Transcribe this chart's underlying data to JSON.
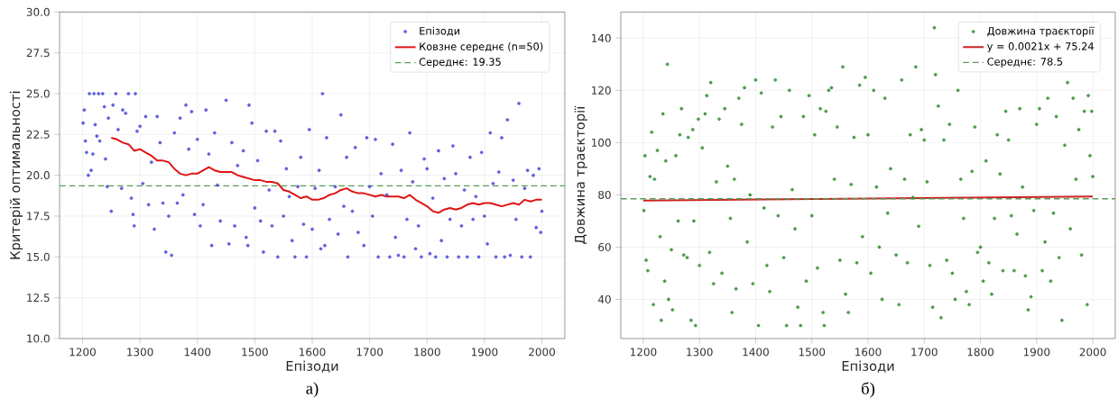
{
  "chart_data": [
    {
      "type": "scatter",
      "xlabel": "Епізоди",
      "ylabel": "Критерій оптимальності",
      "xlim": [
        1160,
        2040
      ],
      "ylim": [
        10,
        30
      ],
      "xticks": [
        1200,
        1300,
        1400,
        1500,
        1600,
        1700,
        1800,
        1900,
        2000
      ],
      "yticks": [
        {
          "value": 10,
          "label": "10.0"
        },
        {
          "value": 12.5,
          "label": "12.5"
        },
        {
          "value": 15,
          "label": "15.0"
        },
        {
          "value": 17.5,
          "label": "17.5"
        },
        {
          "value": 20,
          "label": "20.0"
        },
        {
          "value": 22.5,
          "label": "22.5"
        },
        {
          "value": 25,
          "label": "25.0"
        },
        {
          "value": 27.5,
          "label": "27.5"
        },
        {
          "value": 30,
          "label": "30.0"
        }
      ],
      "grid": true,
      "legend": "top right",
      "series": [
        {
          "name": "Епізоди",
          "marker": "circle",
          "color": "#4646d8",
          "x": [
            1201,
            1203,
            1205,
            1207,
            1210,
            1212,
            1215,
            1218,
            1220,
            1222,
            1225,
            1228,
            1230,
            1235,
            1238,
            1240,
            1243,
            1245,
            1250,
            1253,
            1258,
            1262,
            1268,
            1270,
            1275,
            1280,
            1285,
            1288,
            1290,
            1292,
            1295,
            1300,
            1305,
            1310,
            1315,
            1320,
            1325,
            1330,
            1335,
            1340,
            1345,
            1350,
            1355,
            1360,
            1365,
            1370,
            1375,
            1380,
            1385,
            1390,
            1395,
            1400,
            1405,
            1410,
            1415,
            1420,
            1425,
            1430,
            1435,
            1440,
            1450,
            1455,
            1460,
            1465,
            1470,
            1480,
            1485,
            1488,
            1490,
            1495,
            1500,
            1505,
            1510,
            1515,
            1520,
            1525,
            1530,
            1535,
            1540,
            1545,
            1550,
            1555,
            1560,
            1565,
            1570,
            1575,
            1580,
            1585,
            1590,
            1595,
            1600,
            1605,
            1612,
            1615,
            1618,
            1622,
            1625,
            1630,
            1640,
            1645,
            1650,
            1655,
            1660,
            1662,
            1670,
            1675,
            1680,
            1690,
            1695,
            1700,
            1705,
            1710,
            1715,
            1720,
            1730,
            1735,
            1740,
            1745,
            1750,
            1755,
            1760,
            1765,
            1770,
            1775,
            1780,
            1785,
            1790,
            1795,
            1800,
            1805,
            1810,
            1815,
            1820,
            1825,
            1830,
            1835,
            1840,
            1845,
            1850,
            1855,
            1860,
            1865,
            1870,
            1875,
            1880,
            1885,
            1890,
            1895,
            1900,
            1905,
            1910,
            1915,
            1920,
            1925,
            1930,
            1935,
            1940,
            1945,
            1950,
            1955,
            1960,
            1965,
            1970,
            1975,
            1980,
            1985,
            1990,
            1995,
            1998,
            2000
          ],
          "values": [
            23.2,
            24.0,
            22.1,
            21.4,
            20.0,
            25.0,
            20.3,
            21.3,
            25.0,
            23.1,
            22.4,
            25.0,
            22.1,
            25.0,
            24.2,
            21.0,
            19.3,
            23.5,
            17.8,
            24.3,
            25.0,
            22.8,
            19.2,
            24.0,
            23.8,
            25.0,
            18.6,
            17.6,
            16.9,
            25.0,
            22.7,
            23.0,
            19.5,
            23.6,
            18.2,
            20.8,
            16.7,
            23.6,
            22.0,
            18.3,
            15.3,
            17.5,
            15.1,
            22.6,
            18.3,
            23.5,
            18.8,
            24.3,
            21.6,
            23.9,
            17.6,
            22.2,
            16.9,
            18.2,
            24.0,
            21.3,
            15.7,
            22.6,
            19.4,
            17.2,
            24.6,
            15.8,
            22.0,
            16.9,
            20.6,
            21.5,
            16.2,
            15.7,
            24.3,
            23.2,
            18.0,
            20.9,
            17.2,
            15.3,
            22.7,
            19.1,
            16.9,
            22.7,
            15.0,
            22.1,
            17.5,
            20.4,
            18.7,
            16.0,
            15.0,
            19.3,
            21.1,
            17.0,
            15.0,
            22.8,
            16.7,
            19.2,
            20.3,
            15.5,
            25.0,
            15.7,
            22.3,
            17.3,
            19.3,
            16.4,
            23.7,
            18.1,
            21.1,
            15.0,
            17.8,
            21.7,
            16.5,
            15.7,
            22.3,
            19.3,
            17.5,
            22.2,
            15.0,
            20.1,
            18.8,
            15.0,
            21.9,
            16.2,
            15.1,
            20.3,
            15.0,
            17.3,
            22.6,
            19.6,
            15.5,
            16.9,
            15.0,
            21.0,
            20.4,
            15.2,
            18.6,
            15.0,
            21.5,
            16.0,
            19.8,
            15.0,
            17.3,
            21.8,
            20.1,
            15.0,
            16.9,
            19.1,
            15.0,
            21.1,
            17.3,
            18.7,
            15.0,
            21.4,
            17.5,
            15.8,
            22.6,
            19.5,
            15.0,
            20.2,
            22.3,
            15.0,
            23.4,
            15.1,
            19.7,
            17.3,
            24.4,
            15.0,
            19.2,
            20.3,
            15.0,
            20.0,
            16.8,
            20.4,
            16.5,
            17.8
          ]
        },
        {
          "name": "Ковзне середнє (n=50)",
          "type": "line",
          "marker": "none",
          "line_style": "solid",
          "color": "#e01414",
          "x": [
            1250,
            1260,
            1270,
            1280,
            1290,
            1300,
            1310,
            1320,
            1330,
            1340,
            1350,
            1360,
            1370,
            1380,
            1390,
            1400,
            1410,
            1420,
            1430,
            1440,
            1450,
            1460,
            1470,
            1480,
            1490,
            1500,
            1510,
            1520,
            1530,
            1540,
            1550,
            1560,
            1570,
            1580,
            1590,
            1600,
            1610,
            1620,
            1630,
            1640,
            1650,
            1660,
            1670,
            1680,
            1690,
            1700,
            1710,
            1720,
            1730,
            1740,
            1750,
            1760,
            1770,
            1780,
            1790,
            1800,
            1810,
            1820,
            1830,
            1840,
            1850,
            1860,
            1870,
            1880,
            1890,
            1900,
            1910,
            1920,
            1930,
            1940,
            1950,
            1960,
            1970,
            1980,
            1990,
            2000
          ],
          "values": [
            22.3,
            22.2,
            22.0,
            21.9,
            21.5,
            21.6,
            21.4,
            21.2,
            20.9,
            20.9,
            20.8,
            20.4,
            20.1,
            20.0,
            20.1,
            20.1,
            20.3,
            20.5,
            20.3,
            20.2,
            20.2,
            20.2,
            20.0,
            19.9,
            19.8,
            19.7,
            19.7,
            19.6,
            19.6,
            19.5,
            19.1,
            19.0,
            18.8,
            18.6,
            18.7,
            18.5,
            18.5,
            18.6,
            18.8,
            18.9,
            19.1,
            19.2,
            19.0,
            18.9,
            18.9,
            18.8,
            18.7,
            18.8,
            18.7,
            18.7,
            18.7,
            18.6,
            18.8,
            18.5,
            18.3,
            18.1,
            17.8,
            17.7,
            17.9,
            18.0,
            17.9,
            18.0,
            18.2,
            18.3,
            18.2,
            18.3,
            18.3,
            18.2,
            18.1,
            18.2,
            18.3,
            18.2,
            18.5,
            18.4,
            18.5,
            18.5
          ]
        }
      ],
      "ref_lines": [
        {
          "axis": "y",
          "value": 19.35,
          "label": "Середнє: 19.35",
          "color": "#5a9a5a",
          "line_style": "dashed"
        }
      ],
      "annotations": [
        "а)"
      ]
    },
    {
      "type": "scatter",
      "xlabel": "Епізоди",
      "ylabel": "Довжина траєкторії",
      "xlim": [
        1160,
        2040
      ],
      "ylim": [
        25,
        150
      ],
      "xticks": [
        1200,
        1300,
        1400,
        1500,
        1600,
        1700,
        1800,
        1900,
        2000
      ],
      "yticks": [
        40,
        60,
        80,
        100,
        120,
        140
      ],
      "grid": true,
      "legend": "top right",
      "series": [
        {
          "name": "Довжина траєкторії",
          "marker": "circle",
          "color": "#2e8b2e",
          "x": [
            1201,
            1203,
            1205,
            1208,
            1212,
            1215,
            1218,
            1220,
            1225,
            1230,
            1232,
            1235,
            1238,
            1240,
            1243,
            1245,
            1250,
            1252,
            1258,
            1262,
            1265,
            1268,
            1272,
            1278,
            1280,
            1285,
            1288,
            1290,
            1293,
            1298,
            1300,
            1305,
            1310,
            1313,
            1318,
            1320,
            1325,
            1330,
            1335,
            1340,
            1345,
            1350,
            1355,
            1358,
            1362,
            1365,
            1370,
            1375,
            1380,
            1385,
            1390,
            1395,
            1400,
            1405,
            1410,
            1415,
            1420,
            1425,
            1430,
            1435,
            1440,
            1445,
            1450,
            1455,
            1460,
            1465,
            1470,
            1475,
            1480,
            1485,
            1490,
            1495,
            1500,
            1505,
            1510,
            1515,
            1520,
            1522,
            1525,
            1530,
            1535,
            1540,
            1545,
            1550,
            1555,
            1560,
            1565,
            1570,
            1575,
            1580,
            1585,
            1590,
            1595,
            1600,
            1605,
            1610,
            1615,
            1620,
            1625,
            1630,
            1635,
            1640,
            1650,
            1655,
            1660,
            1665,
            1670,
            1675,
            1680,
            1685,
            1690,
            1695,
            1700,
            1705,
            1710,
            1715,
            1718,
            1720,
            1725,
            1730,
            1735,
            1740,
            1745,
            1750,
            1755,
            1760,
            1765,
            1770,
            1775,
            1780,
            1785,
            1790,
            1795,
            1800,
            1805,
            1810,
            1815,
            1820,
            1825,
            1830,
            1835,
            1840,
            1845,
            1850,
            1855,
            1860,
            1865,
            1870,
            1875,
            1880,
            1885,
            1890,
            1895,
            1900,
            1905,
            1910,
            1915,
            1920,
            1925,
            1930,
            1935,
            1940,
            1945,
            1950,
            1955,
            1960,
            1965,
            1970,
            1975,
            1980,
            1985,
            1990,
            1992,
            1995,
            1998,
            2000
          ],
          "values": [
            74,
            95,
            55,
            51,
            87,
            104,
            38,
            86,
            97,
            64,
            32,
            111,
            47,
            93,
            130,
            40,
            59,
            36,
            95,
            70,
            103,
            113,
            57,
            56,
            102,
            32,
            105,
            70,
            30,
            109,
            53,
            98,
            111,
            118,
            58,
            123,
            46,
            85,
            109,
            50,
            113,
            91,
            71,
            35,
            86,
            44,
            117,
            107,
            121,
            62,
            80,
            46,
            124,
            30,
            119,
            75,
            53,
            43,
            106,
            124,
            72,
            110,
            56,
            30,
            120,
            82,
            67,
            37,
            30,
            110,
            47,
            118,
            72,
            103,
            52,
            113,
            35,
            30,
            112,
            120,
            121,
            86,
            106,
            55,
            129,
            42,
            35,
            84,
            102,
            54,
            122,
            64,
            125,
            103,
            50,
            120,
            83,
            60,
            40,
            117,
            73,
            90,
            57,
            38,
            124,
            86,
            54,
            103,
            79,
            129,
            68,
            105,
            101,
            85,
            53,
            37,
            144,
            126,
            114,
            33,
            101,
            55,
            107,
            50,
            40,
            120,
            86,
            71,
            43,
            38,
            89,
            106,
            58,
            60,
            47,
            93,
            54,
            42,
            71,
            103,
            88,
            51,
            112,
            101,
            72,
            51,
            65,
            113,
            83,
            49,
            36,
            41,
            74,
            107,
            113,
            51,
            62,
            117,
            47,
            73,
            110,
            56,
            32,
            99,
            123,
            67,
            117,
            86,
            105,
            57,
            112,
            38,
            118,
            95,
            112,
            87
          ]
        },
        {
          "name": "y = 0.0021x + 75.24",
          "type": "line",
          "marker": "none",
          "line_style": "solid",
          "color": "#cc2020",
          "x": [
            1200,
            2000
          ],
          "values": [
            77.8,
            79.4
          ]
        }
      ],
      "ref_lines": [
        {
          "axis": "y",
          "value": 78.5,
          "label": "Середнє: 78.5",
          "color": "#5a9a5a",
          "line_style": "dashed"
        }
      ],
      "annotations": [
        "б)"
      ]
    }
  ]
}
